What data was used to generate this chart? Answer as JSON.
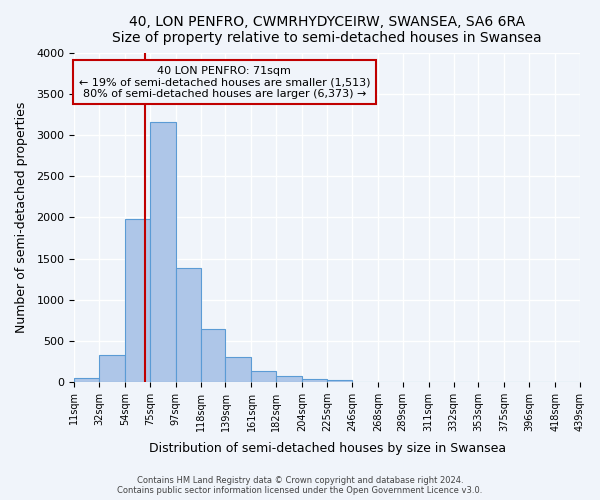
{
  "title": "40, LON PENFRO, CWMRHYDYCEIRW, SWANSEA, SA6 6RA",
  "subtitle": "Size of property relative to semi-detached houses in Swansea",
  "xlabel": "Distribution of semi-detached houses by size in Swansea",
  "ylabel": "Number of semi-detached properties",
  "bin_labels": [
    "11sqm",
    "32sqm",
    "54sqm",
    "75sqm",
    "97sqm",
    "118sqm",
    "139sqm",
    "161sqm",
    "182sqm",
    "204sqm",
    "225sqm",
    "246sqm",
    "268sqm",
    "289sqm",
    "311sqm",
    "332sqm",
    "353sqm",
    "375sqm",
    "396sqm",
    "418sqm",
    "439sqm"
  ],
  "bin_edges": [
    11,
    32,
    54,
    75,
    97,
    118,
    139,
    161,
    182,
    204,
    225,
    246,
    268,
    289,
    311,
    332,
    353,
    375,
    396,
    418,
    439
  ],
  "bar_heights": [
    50,
    320,
    1980,
    3160,
    1390,
    640,
    300,
    135,
    75,
    30,
    25,
    0,
    0,
    0,
    0,
    0,
    0,
    0,
    0,
    0
  ],
  "bar_color": "#aec6e8",
  "bar_edgecolor": "#5b9bd5",
  "property_value": 71,
  "vline_color": "#c00000",
  "annotation_text_line1": "40 LON PENFRO: 71sqm",
  "annotation_text_line2": "← 19% of semi-detached houses are smaller (1,513)",
  "annotation_text_line3": "80% of semi-detached houses are larger (6,373) →",
  "annotation_box_color": "#c00000",
  "ylim": [
    0,
    4000
  ],
  "yticks": [
    0,
    500,
    1000,
    1500,
    2000,
    2500,
    3000,
    3500,
    4000
  ],
  "footnote1": "Contains HM Land Registry data © Crown copyright and database right 2024.",
  "footnote2": "Contains public sector information licensed under the Open Government Licence v3.0.",
  "background_color": "#f0f4fa",
  "grid_color": "#ffffff"
}
